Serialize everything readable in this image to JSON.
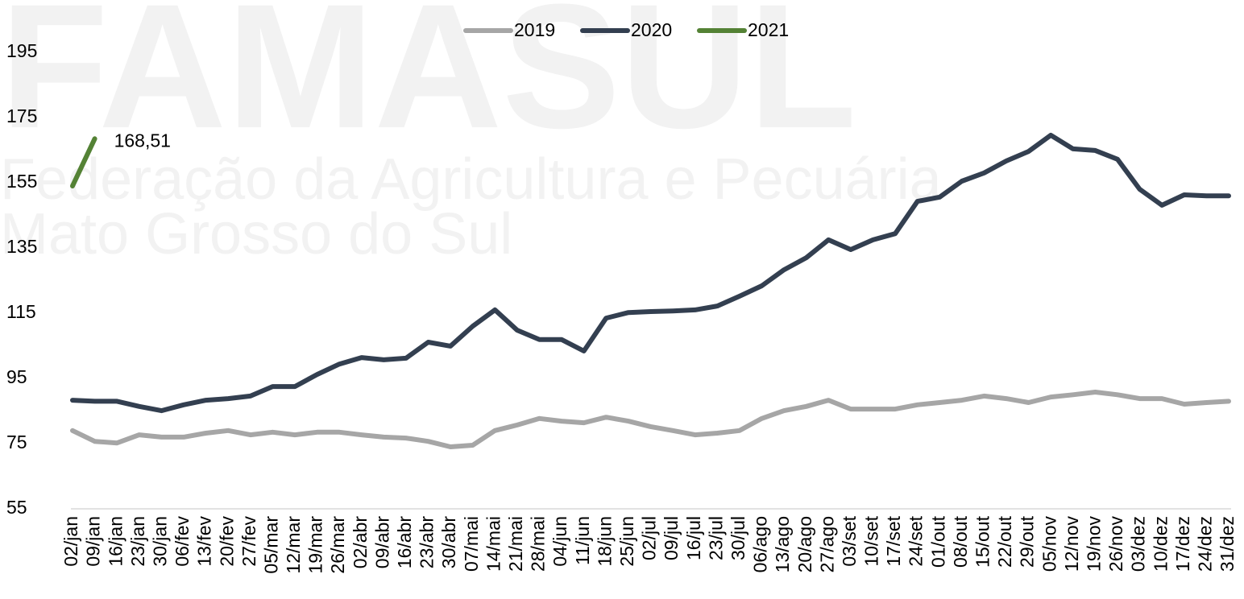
{
  "chart_data": {
    "type": "line",
    "watermark": {
      "title": "FAMASUL",
      "line1": "Federação da Agricultura e Pecuária",
      "line2": "Mato Grosso do Sul"
    },
    "categories": [
      "02/jan",
      "09/jan",
      "16/jan",
      "23/jan",
      "30/jan",
      "06/fev",
      "13/fev",
      "20/fev",
      "27/fev",
      "05/mar",
      "12/mar",
      "19/mar",
      "26/mar",
      "02/abr",
      "09/abr",
      "16/abr",
      "23/abr",
      "30/abr",
      "07/mai",
      "14/mai",
      "21/mai",
      "28/mai",
      "04/jun",
      "11/jun",
      "18/jun",
      "25/jun",
      "02/jul",
      "09/jul",
      "16/jul",
      "23/jul",
      "30/jul",
      "06/ago",
      "13/ago",
      "20/ago",
      "27/ago",
      "03/set",
      "10/set",
      "17/set",
      "24/set",
      "01/out",
      "08/out",
      "15/out",
      "22/out",
      "29/out",
      "05/nov",
      "12/nov",
      "19/nov",
      "26/nov",
      "03/dez",
      "10/dez",
      "17/dez",
      "24/dez",
      "31/dez"
    ],
    "series": [
      {
        "name": "2019",
        "color": "#a6a6a6",
        "values": [
          79,
          75.7,
          75.2,
          77.7,
          77,
          77,
          78.2,
          79,
          77.7,
          78.5,
          77.7,
          78.5,
          78.5,
          77.7,
          77,
          76.7,
          75.7,
          74,
          74.5,
          79,
          80.7,
          82.7,
          81.9,
          81.4,
          83.1,
          81.9,
          80.2,
          79,
          77.7,
          78.2,
          79,
          82.7,
          85.1,
          86.4,
          88.3,
          85.6,
          85.6,
          85.6,
          86.9,
          87.6,
          88.3,
          89.6,
          88.8,
          87.6,
          89.3,
          90,
          90.8,
          90,
          88.8,
          88.8,
          87.1,
          87.6,
          88
        ]
      },
      {
        "name": "2020",
        "color": "#333f50",
        "values": [
          88.3,
          88,
          88,
          86.4,
          85.1,
          86.9,
          88.3,
          88.8,
          89.6,
          92.5,
          92.5,
          96.2,
          99.4,
          101.4,
          100.7,
          101.2,
          106.1,
          104.9,
          111,
          116,
          109.8,
          106.9,
          106.9,
          103.4,
          113.5,
          115.2,
          115.5,
          115.7,
          116,
          117.2,
          120.2,
          123.4,
          128.3,
          132,
          137.5,
          134.5,
          137.5,
          139.4,
          149.3,
          150.6,
          155.5,
          158,
          161.7,
          164.6,
          169.6,
          165.4,
          164.9,
          162.2,
          153,
          148.1,
          151.3,
          151,
          151
        ]
      },
      {
        "name": "2021",
        "color": "#548235",
        "values": [
          154,
          168.51,
          null,
          null,
          null,
          null,
          null,
          null,
          null,
          null,
          null,
          null,
          null,
          null,
          null,
          null,
          null,
          null,
          null,
          null,
          null,
          null,
          null,
          null,
          null,
          null,
          null,
          null,
          null,
          null,
          null,
          null,
          null,
          null,
          null,
          null,
          null,
          null,
          null,
          null,
          null,
          null,
          null,
          null,
          null,
          null,
          null,
          null,
          null,
          null,
          null,
          null,
          null
        ],
        "value_labels": [
          null,
          "168,51",
          null,
          null,
          null,
          null,
          null,
          null,
          null,
          null,
          null,
          null,
          null,
          null,
          null,
          null,
          null,
          null,
          null,
          null,
          null,
          null,
          null,
          null,
          null,
          null,
          null,
          null,
          null,
          null,
          null,
          null,
          null,
          null,
          null,
          null,
          null,
          null,
          null,
          null,
          null,
          null,
          null,
          null,
          null,
          null,
          null,
          null,
          null,
          null,
          null,
          null,
          null
        ]
      }
    ],
    "ylim": [
      55,
      195
    ],
    "yticks": [
      55,
      75,
      95,
      115,
      135,
      155,
      175,
      195
    ],
    "legend": "top"
  }
}
